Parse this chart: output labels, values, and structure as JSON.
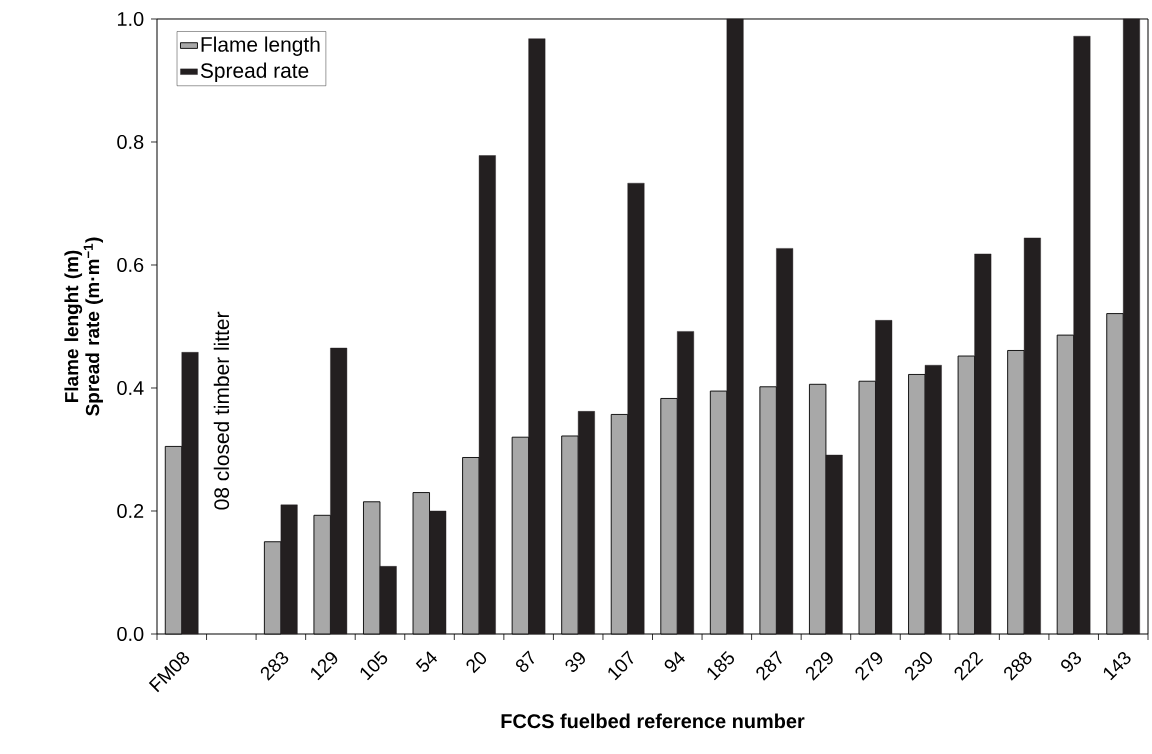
{
  "chart_data": {
    "type": "bar",
    "xlabel": "FCCS fuelbed reference number",
    "ylabel": "Flame lenght (m) Spread rate (m·m$^{−1}$)",
    "categories": [
      "FM08",
      null,
      "283",
      "129",
      "105",
      "54",
      "20",
      "87",
      "39",
      "107",
      "94",
      "185",
      "287",
      "229",
      "279",
      "230",
      "222",
      "288",
      "93",
      "143"
    ],
    "series": [
      {
        "name": "Flame length",
        "color": "#a8a8a8",
        "values": [
          0.305,
          null,
          0.15,
          0.193,
          0.215,
          0.23,
          0.287,
          0.32,
          0.322,
          0.357,
          0.383,
          0.395,
          0.402,
          0.406,
          0.411,
          0.422,
          0.452,
          0.461,
          0.486,
          0.521
        ]
      },
      {
        "name": "Spread rate",
        "color": "#231f20",
        "values": [
          0.458,
          null,
          0.21,
          0.465,
          0.11,
          0.2,
          0.778,
          0.968,
          0.362,
          0.733,
          0.492,
          1.0,
          0.627,
          0.291,
          0.51,
          0.437,
          0.618,
          0.644,
          0.972,
          1.0
        ]
      }
    ],
    "ylim": [
      0,
      1.0
    ],
    "yticks": [
      {
        "value": 0,
        "label": "0.0"
      },
      {
        "value": 0.2,
        "label": "0.2"
      },
      {
        "value": 0.4,
        "label": "0.4"
      },
      {
        "value": 0.6,
        "label": "0.6"
      },
      {
        "value": 0.8,
        "label": "0.8"
      },
      {
        "value": 1.0,
        "label": "1.0"
      }
    ],
    "annotations": [
      "08 closed timber litter"
    ],
    "legend": "top left",
    "grid": false
  }
}
